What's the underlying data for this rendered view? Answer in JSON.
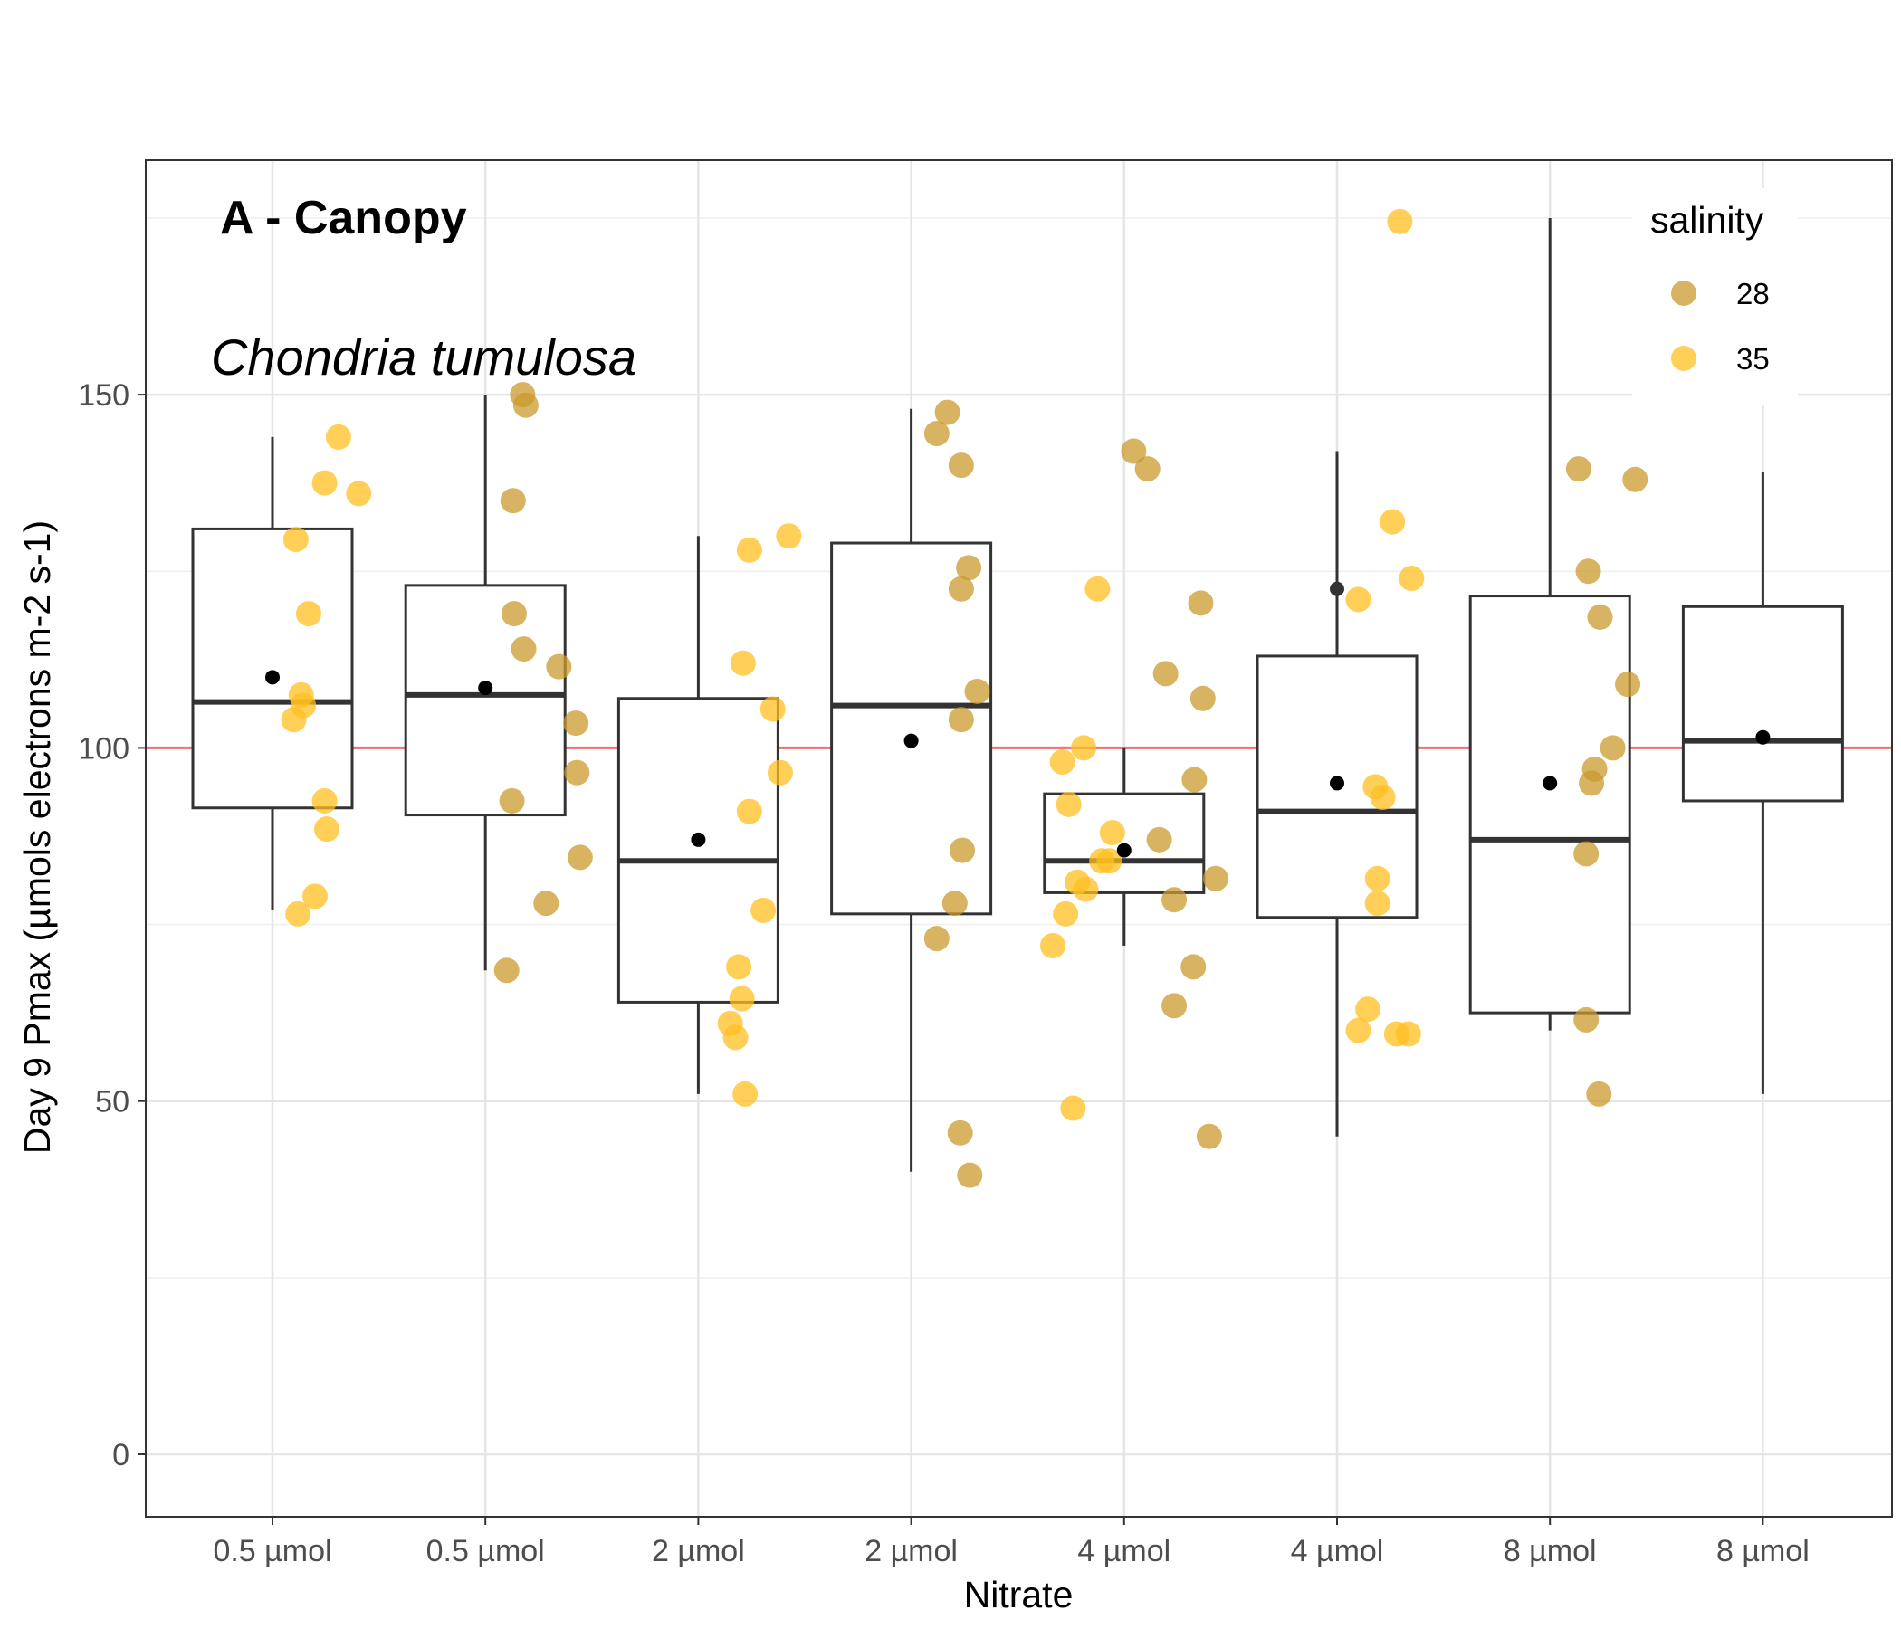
{
  "chart_data": {
    "type": "box",
    "title": "A - Canopy",
    "subtitle": "Chondria tumulosa",
    "xlabel": "Nitrate",
    "ylabel": "Day 9 Pmax (µmols electrons m-2 s-1)",
    "categories": [
      "0.5 µmol",
      "0.5 µmol",
      "2 µmol",
      "2 µmol",
      "4 µmol",
      "4 µmol",
      "8 µmol",
      "8 µmol"
    ],
    "ylim": [
      -8,
      184
    ],
    "yticks": [
      0,
      50,
      100,
      150
    ],
    "grid": true,
    "reference_line": {
      "y": 100,
      "color": "#f07070"
    },
    "legend": {
      "title": "salinity",
      "position": "top-right",
      "entries": [
        {
          "label": "28",
          "color": "#c99a2e"
        },
        {
          "label": "35",
          "color": "#ffbf1f"
        }
      ]
    },
    "boxes": [
      {
        "q1": 91.5,
        "median": 106.5,
        "q3": 131,
        "lower": 77,
        "upper": 144,
        "mean": 110
      },
      {
        "q1": 90.5,
        "median": 107.5,
        "q3": 123,
        "lower": 68.5,
        "upper": 150,
        "mean": 108.5
      },
      {
        "q1": 64,
        "median": 84,
        "q3": 107,
        "lower": 51,
        "upper": 130,
        "mean": 87
      },
      {
        "q1": 76.5,
        "median": 106,
        "q3": 129,
        "lower": 40,
        "upper": 148,
        "mean": 101
      },
      {
        "q1": 79.5,
        "median": 84,
        "q3": 93.5,
        "lower": 72,
        "upper": 100,
        "mean": 85.5
      },
      {
        "q1": 76,
        "median": 91,
        "q3": 113,
        "lower": 45,
        "upper": 142,
        "mean": 95
      },
      {
        "q1": 62.5,
        "median": 87,
        "q3": 121.5,
        "lower": 60,
        "upper": 175,
        "mean": 95
      },
      {
        "q1": 92.5,
        "median": 101,
        "q3": 120,
        "lower": 51,
        "upper": 139,
        "mean": 101.5
      }
    ],
    "outliers": [
      {
        "group": 5,
        "y": 122.5
      }
    ],
    "series": [
      {
        "name": "28",
        "points": [
          {
            "x": 2.7,
            "y": 68.5
          },
          {
            "x": 2.75,
            "y": 92.5
          },
          {
            "x": 2.76,
            "y": 135
          },
          {
            "x": 2.77,
            "y": 119
          },
          {
            "x": 2.85,
            "y": 150
          },
          {
            "x": 2.88,
            "y": 148.5
          },
          {
            "x": 2.86,
            "y": 114
          },
          {
            "x": 3.07,
            "y": 78
          },
          {
            "x": 3.19,
            "y": 111.5
          },
          {
            "x": 3.35,
            "y": 103.5
          },
          {
            "x": 3.36,
            "y": 96.5
          },
          {
            "x": 3.39,
            "y": 84.5
          },
          {
            "x": 6.74,
            "y": 73
          },
          {
            "x": 6.74,
            "y": 144.5
          },
          {
            "x": 6.84,
            "y": 147.5
          },
          {
            "x": 6.91,
            "y": 78
          },
          {
            "x": 6.96,
            "y": 45.5
          },
          {
            "x": 6.97,
            "y": 140
          },
          {
            "x": 6.97,
            "y": 122.5
          },
          {
            "x": 6.97,
            "y": 104
          },
          {
            "x": 6.98,
            "y": 85.5
          },
          {
            "x": 7.05,
            "y": 39.5
          },
          {
            "x": 7.04,
            "y": 125.5
          },
          {
            "x": 7.12,
            "y": 108
          },
          {
            "x": 8.59,
            "y": 142
          },
          {
            "x": 8.72,
            "y": 139.5
          },
          {
            "x": 8.83,
            "y": 87
          },
          {
            "x": 8.89,
            "y": 110.5
          },
          {
            "x": 8.97,
            "y": 78.5
          },
          {
            "x": 8.97,
            "y": 63.5
          },
          {
            "x": 9.15,
            "y": 69
          },
          {
            "x": 9.16,
            "y": 95.5
          },
          {
            "x": 9.22,
            "y": 120.5
          },
          {
            "x": 9.24,
            "y": 107
          },
          {
            "x": 9.3,
            "y": 45
          },
          {
            "x": 9.36,
            "y": 81.5
          },
          {
            "x": 12.77,
            "y": 139.5
          },
          {
            "x": 12.84,
            "y": 61.5
          },
          {
            "x": 12.84,
            "y": 85
          },
          {
            "x": 12.86,
            "y": 125
          },
          {
            "x": 12.89,
            "y": 95
          },
          {
            "x": 12.92,
            "y": 97
          },
          {
            "x": 12.97,
            "y": 118.5
          },
          {
            "x": 12.96,
            "y": 51
          },
          {
            "x": 13.09,
            "y": 100
          },
          {
            "x": 13.23,
            "y": 109
          },
          {
            "x": 13.3,
            "y": 138
          }
        ]
      },
      {
        "name": "35",
        "points": [
          {
            "x": 0.7,
            "y": 104
          },
          {
            "x": 0.72,
            "y": 129.5
          },
          {
            "x": 0.74,
            "y": 76.5
          },
          {
            "x": 0.77,
            "y": 107.5
          },
          {
            "x": 0.79,
            "y": 106
          },
          {
            "x": 0.84,
            "y": 119
          },
          {
            "x": 0.9,
            "y": 79
          },
          {
            "x": 0.99,
            "y": 137.5
          },
          {
            "x": 0.99,
            "y": 92.5
          },
          {
            "x": 1.01,
            "y": 88.5
          },
          {
            "x": 1.12,
            "y": 144
          },
          {
            "x": 1.31,
            "y": 136
          },
          {
            "x": 4.8,
            "y": 61
          },
          {
            "x": 4.85,
            "y": 59
          },
          {
            "x": 4.88,
            "y": 69
          },
          {
            "x": 4.91,
            "y": 64.5
          },
          {
            "x": 4.92,
            "y": 112
          },
          {
            "x": 4.94,
            "y": 51
          },
          {
            "x": 4.98,
            "y": 128
          },
          {
            "x": 4.98,
            "y": 91
          },
          {
            "x": 5.11,
            "y": 77
          },
          {
            "x": 5.2,
            "y": 105.5
          },
          {
            "x": 5.27,
            "y": 96.5
          },
          {
            "x": 5.35,
            "y": 130
          },
          {
            "x": 7.83,
            "y": 72
          },
          {
            "x": 7.95,
            "y": 76.5
          },
          {
            "x": 7.92,
            "y": 98
          },
          {
            "x": 7.98,
            "y": 92
          },
          {
            "x": 8.02,
            "y": 49
          },
          {
            "x": 8.06,
            "y": 81
          },
          {
            "x": 8.12,
            "y": 100
          },
          {
            "x": 8.14,
            "y": 80
          },
          {
            "x": 8.25,
            "y": 122.5
          },
          {
            "x": 8.29,
            "y": 84
          },
          {
            "x": 8.36,
            "y": 84
          },
          {
            "x": 8.39,
            "y": 88
          },
          {
            "x": 10.7,
            "y": 60
          },
          {
            "x": 10.7,
            "y": 121
          },
          {
            "x": 10.79,
            "y": 63
          },
          {
            "x": 10.86,
            "y": 94.5
          },
          {
            "x": 10.88,
            "y": 81.5
          },
          {
            "x": 10.88,
            "y": 78
          },
          {
            "x": 10.93,
            "y": 93
          },
          {
            "x": 11.02,
            "y": 132
          },
          {
            "x": 11.06,
            "y": 59.5
          },
          {
            "x": 11.17,
            "y": 59.5
          },
          {
            "x": 11.09,
            "y": 174.5
          },
          {
            "x": 11.2,
            "y": 124
          }
        ]
      }
    ]
  }
}
